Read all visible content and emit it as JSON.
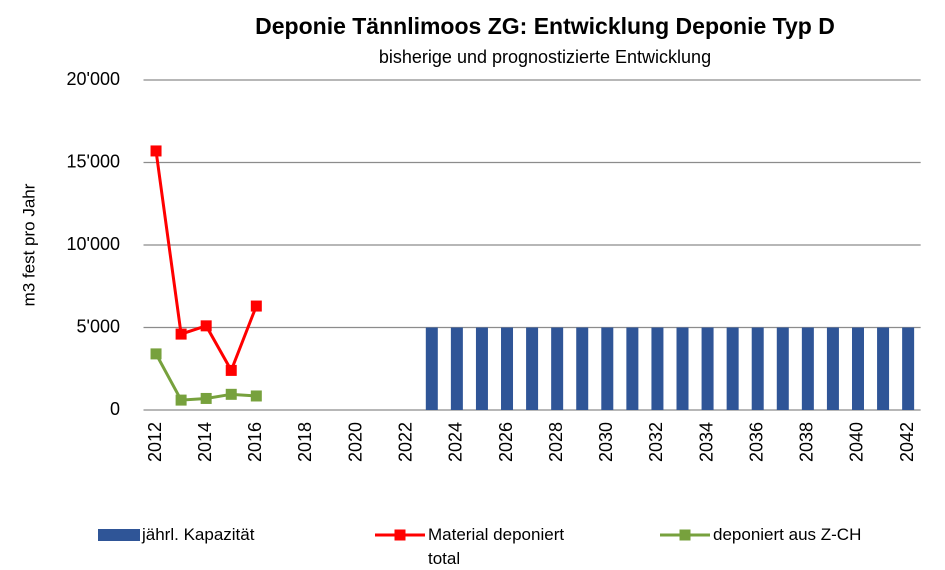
{
  "chart_data": {
    "type": "combo",
    "title": "Deponie Tännlimoos ZG: Entwicklung Deponie Typ D",
    "subtitle": "bisherige und prognostizierte Entwicklung",
    "y_label": "m3 fest pro Jahr",
    "categories": [
      "2012",
      null,
      "2014",
      null,
      "2016",
      null,
      "2018",
      null,
      "2020",
      null,
      "2022",
      null,
      "2024",
      null,
      "2026",
      null,
      "2028",
      null,
      "2030",
      null,
      "2032",
      null,
      "2034",
      null,
      "2036",
      null,
      "2038",
      null,
      "2040",
      null,
      "2042"
    ],
    "series": [
      {
        "name": "jährl. Kapazität",
        "type": "bar",
        "color": "#2f5597",
        "values": [
          null,
          null,
          null,
          null,
          null,
          null,
          null,
          null,
          null,
          null,
          null,
          5000,
          5000,
          5000,
          5000,
          5000,
          5000,
          5000,
          5000,
          5000,
          5000,
          5000,
          5000,
          5000,
          5000,
          5000,
          5000,
          5000,
          5000,
          5000,
          5000
        ]
      },
      {
        "name": "Material deponiert total",
        "type": "line",
        "color": "#ff0000",
        "values": [
          15700,
          4600,
          5100,
          2400,
          6300,
          null,
          null,
          null,
          null,
          null,
          null,
          null,
          null,
          null,
          null,
          null,
          null,
          null,
          null,
          null,
          null,
          null,
          null,
          null,
          null,
          null,
          null,
          null,
          null,
          null,
          null
        ]
      },
      {
        "name": "deponiert aus Z-CH",
        "type": "line",
        "color": "#77a13d",
        "values": [
          3400,
          600,
          700,
          950,
          850,
          null,
          null,
          null,
          null,
          null,
          null,
          null,
          null,
          null,
          null,
          null,
          null,
          null,
          null,
          null,
          null,
          null,
          null,
          null,
          null,
          null,
          null,
          null,
          null,
          null,
          null
        ]
      }
    ],
    "ylim": [
      0,
      20000
    ],
    "yticks": [
      0,
      {
        "value": 5000,
        "label": "5'000"
      },
      {
        "value": 10000,
        "label": "10'000"
      },
      {
        "value": 15000,
        "label": "15'000"
      },
      {
        "value": 20000,
        "label": "20'000"
      }
    ],
    "grid": true
  }
}
